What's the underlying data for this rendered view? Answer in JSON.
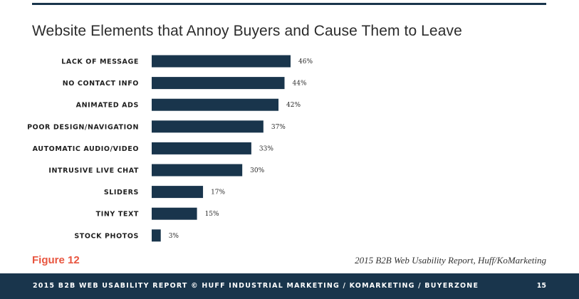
{
  "title": "Website Elements that Annoy Buyers and Cause Them to Leave",
  "figure_label": "Figure 12",
  "source": "2015 B2B Web Usability Report, Huff/KoMarketing",
  "footer": {
    "text": "2015 B2B WEB USABILITY REPORT © HUFF INDUSTRIAL MARKETING / KOMARKETING / BUYERZONE",
    "page_number": "15"
  },
  "colors": {
    "bar": "#19354c",
    "accent": "#e8553f",
    "footer_band": "#19354c"
  },
  "chart_data": {
    "type": "bar",
    "orientation": "horizontal",
    "title": "Website Elements that Annoy Buyers and Cause Them to Leave",
    "categories": [
      "LACK OF MESSAGE",
      "NO CONTACT INFO",
      "ANIMATED ADS",
      "POOR DESIGN/NAVIGATION",
      "AUTOMATIC AUDIO/VIDEO",
      "INTRUSIVE LIVE CHAT",
      "SLIDERS",
      "TINY TEXT",
      "STOCK PHOTOS"
    ],
    "values": [
      46,
      44,
      42,
      37,
      33,
      30,
      17,
      15,
      3
    ],
    "value_labels": [
      "46%",
      "44%",
      "42%",
      "37%",
      "33%",
      "30%",
      "17%",
      "15%",
      "3%"
    ],
    "unit": "%",
    "xlim": [
      0,
      100
    ],
    "grid": false,
    "legend": "none"
  }
}
